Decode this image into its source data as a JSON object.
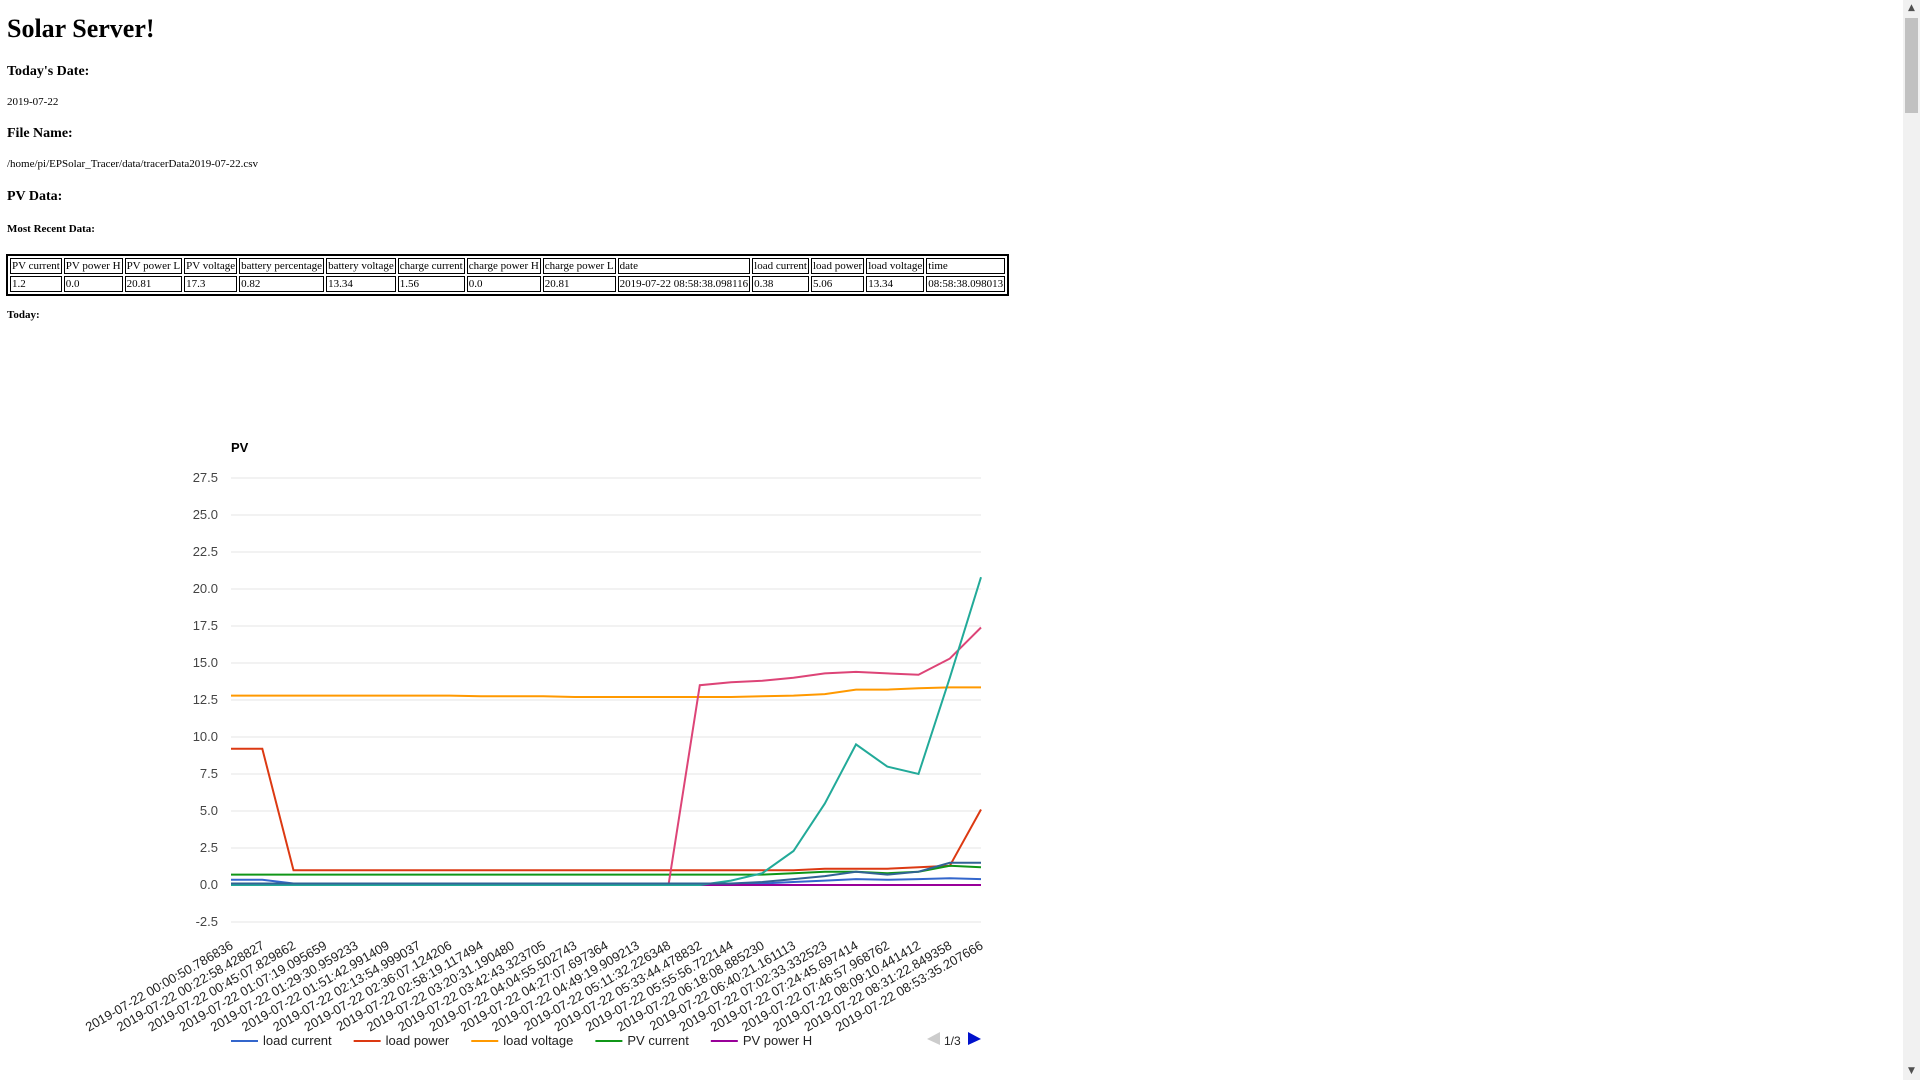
{
  "page": {
    "title": "Solar Server!",
    "date_heading": "Today's Date:",
    "date_value": "2019-07-22",
    "file_heading": "File Name:",
    "file_value": "/home/pi/EPSolar_Tracer/data/tracerData2019-07-22.csv",
    "pv_heading": "PV Data:",
    "recent_heading": "Most Recent Data:",
    "today_heading": "Today:"
  },
  "recent_table": {
    "headers": [
      "PV current",
      "PV power H",
      "PV power L",
      "PV voltage",
      "battery percentage",
      "battery voltage",
      "charge current",
      "charge power H",
      "charge power L",
      "date",
      "load current",
      "load power",
      "load voltage",
      "time"
    ],
    "row": [
      "1.2",
      "0.0",
      "20.81",
      "17.3",
      "0.82",
      "13.34",
      "1.56",
      "0.0",
      "20.81",
      "2019-07-22 08:58:38.098116",
      "0.38",
      "5.06",
      "13.34",
      "08:58:38.098013"
    ]
  },
  "chart_data": {
    "type": "line",
    "title": "PV",
    "ylim": [
      -2.5,
      27.5
    ],
    "yticks": [
      "-2.5",
      "0.0",
      "2.5",
      "5.0",
      "7.5",
      "10.0",
      "12.5",
      "15.0",
      "17.5",
      "20.0",
      "22.5",
      "25.0",
      "27.5"
    ],
    "grid": true,
    "legend_position": "bottom",
    "pager": "1/3",
    "categories": [
      "2019-07-22 00:00:50.786836",
      "2019-07-22 00:22:58.428827",
      "2019-07-22 00:45:07.829862",
      "2019-07-22 01:07:19.095659",
      "2019-07-22 01:29:30.959233",
      "2019-07-22 01:51:42.991409",
      "2019-07-22 02:13:54.999037",
      "2019-07-22 02:36:07.124206",
      "2019-07-22 02:58:19.117494",
      "2019-07-22 03:20:31.190480",
      "2019-07-22 03:42:43.323705",
      "2019-07-22 04:04:55.502743",
      "2019-07-22 04:27:07.697364",
      "2019-07-22 04:49:19.909213",
      "2019-07-22 05:11:32.226348",
      "2019-07-22 05:33:44.478832",
      "2019-07-22 05:55:56.722144",
      "2019-07-22 06:18:08.885230",
      "2019-07-22 06:40:21.161113",
      "2019-07-22 07:02:33.332523",
      "2019-07-22 07:24:45.697414",
      "2019-07-22 07:46:57.968762",
      "2019-07-22 08:09:10.441412",
      "2019-07-22 08:31:22.849358",
      "2019-07-22 08:53:35.207666"
    ],
    "series": [
      {
        "name": "load current",
        "color": "#3366cc",
        "values": [
          0.35,
          0.35,
          0.1,
          0.1,
          0.1,
          0.1,
          0.1,
          0.1,
          0.1,
          0.1,
          0.1,
          0.1,
          0.1,
          0.1,
          0.1,
          0.1,
          0.1,
          0.1,
          0.2,
          0.3,
          0.4,
          0.35,
          0.4,
          0.45,
          0.4
        ]
      },
      {
        "name": "load power",
        "color": "#dc3912",
        "values": [
          9.2,
          9.2,
          1.0,
          1.0,
          1.0,
          1.0,
          1.0,
          1.0,
          1.0,
          1.0,
          1.0,
          1.0,
          1.0,
          1.0,
          1.0,
          1.0,
          1.0,
          1.0,
          1.0,
          1.1,
          1.1,
          1.1,
          1.2,
          1.3,
          5.1
        ]
      },
      {
        "name": "load voltage",
        "color": "#ff9900",
        "values": [
          12.8,
          12.8,
          12.8,
          12.8,
          12.8,
          12.8,
          12.8,
          12.8,
          12.75,
          12.75,
          12.75,
          12.7,
          12.7,
          12.7,
          12.7,
          12.7,
          12.7,
          12.75,
          12.8,
          12.9,
          13.2,
          13.2,
          13.3,
          13.35,
          13.35
        ]
      },
      {
        "name": "PV current",
        "color": "#109618",
        "values": [
          0.7,
          0.7,
          0.7,
          0.7,
          0.7,
          0.7,
          0.7,
          0.7,
          0.7,
          0.7,
          0.7,
          0.7,
          0.7,
          0.7,
          0.7,
          0.7,
          0.7,
          0.7,
          0.8,
          0.9,
          0.9,
          0.8,
          0.9,
          1.3,
          1.2
        ]
      },
      {
        "name": "PV power H",
        "color": "#990099",
        "values": [
          0,
          0,
          0,
          0,
          0,
          0,
          0,
          0,
          0,
          0,
          0,
          0,
          0,
          0,
          0,
          0,
          0,
          0,
          0,
          0,
          0,
          0,
          0,
          0,
          0
        ]
      },
      {
        "name": "",
        "color": "#dd4477",
        "values": [
          0,
          0,
          0,
          0,
          0,
          0,
          0,
          0,
          0,
          0,
          0,
          0,
          0,
          0,
          0,
          13.5,
          13.7,
          13.8,
          14.0,
          14.3,
          14.4,
          14.3,
          14.2,
          15.3,
          17.4
        ]
      },
      {
        "name": "",
        "color": "#22aa99",
        "values": [
          0,
          0,
          0,
          0,
          0,
          0,
          0,
          0,
          0,
          0,
          0,
          0,
          0,
          0,
          0,
          0,
          0.3,
          0.8,
          2.3,
          5.5,
          9.5,
          8.0,
          7.5,
          14.0,
          20.8
        ]
      },
      {
        "name": "",
        "color": "#316395",
        "values": [
          0.1,
          0.1,
          0.1,
          0.1,
          0.1,
          0.1,
          0.1,
          0.1,
          0.1,
          0.1,
          0.1,
          0.1,
          0.1,
          0.1,
          0.1,
          0.1,
          0.1,
          0.2,
          0.4,
          0.6,
          0.9,
          0.7,
          0.9,
          1.5,
          1.5
        ]
      }
    ]
  },
  "scrollbar": {
    "up_icon": "▲",
    "down_icon": "▼"
  }
}
